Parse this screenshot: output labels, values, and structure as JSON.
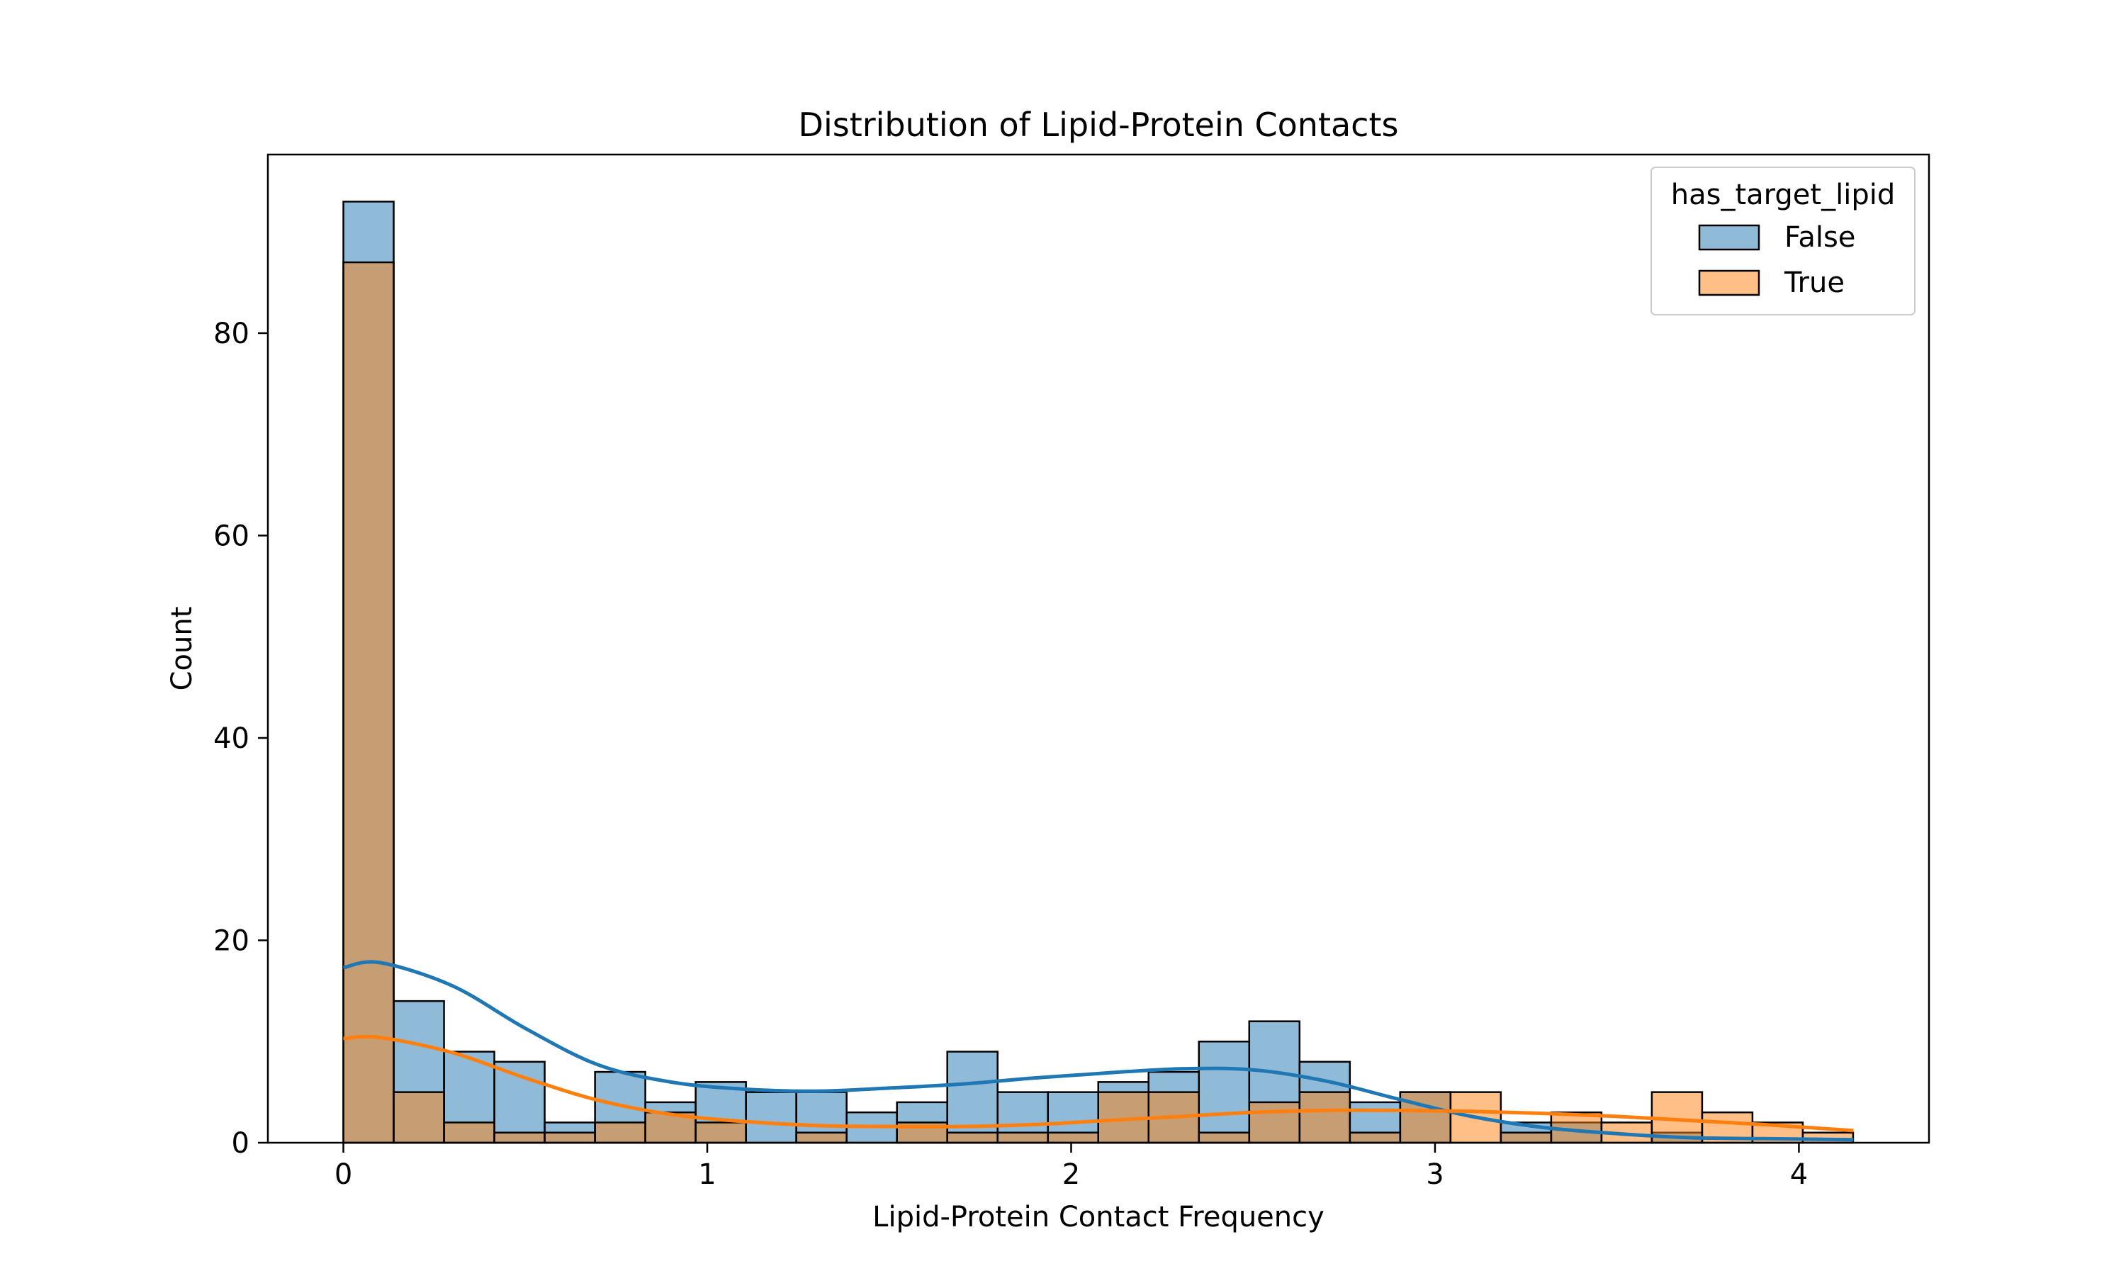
{
  "chart_data": {
    "type": "histogram",
    "title": "Distribution of Lipid-Protein Contacts",
    "xlabel": "Lipid-Protein Contact Frequency",
    "ylabel": "Count",
    "xlim": [
      -0.2075,
      4.3575
    ],
    "ylim": [
      0,
      97.65
    ],
    "xticks": [
      0,
      1,
      2,
      3,
      4
    ],
    "yticks": [
      0,
      20,
      40,
      60,
      80
    ],
    "bin_start": 0,
    "bin_width": 0.1383,
    "grid": false,
    "legend": {
      "title": "has_target_lipid",
      "position": "top-right",
      "entries": [
        "False",
        "True"
      ]
    },
    "series": [
      {
        "name": "False",
        "color": "#1f77b4",
        "values": [
          93,
          14,
          9,
          8,
          2,
          7,
          4,
          6,
          5,
          5,
          3,
          4,
          9,
          5,
          5,
          6,
          7,
          10,
          12,
          8,
          4,
          5,
          0,
          2,
          2,
          0,
          1,
          0,
          0,
          0
        ],
        "kde_x": [
          0,
          0.1,
          0.3,
          0.5,
          0.7,
          0.9,
          1.1,
          1.3,
          1.5,
          1.7,
          1.9,
          2.1,
          2.3,
          2.5,
          2.7,
          2.9,
          3.1,
          3.3,
          3.5,
          3.7,
          3.9,
          4.15
        ],
        "kde_y": [
          17.3,
          17.8,
          15.5,
          11.3,
          7.7,
          6.0,
          5.3,
          5.1,
          5.4,
          5.8,
          6.4,
          6.9,
          7.3,
          7.2,
          6.1,
          4.3,
          2.6,
          1.5,
          0.9,
          0.5,
          0.4,
          0.3
        ]
      },
      {
        "name": "True",
        "color": "#ff7f0e",
        "values": [
          87,
          5,
          2,
          1,
          1,
          2,
          3,
          2,
          0,
          1,
          0,
          2,
          1,
          1,
          1,
          5,
          5,
          1,
          4,
          5,
          1,
          5,
          5,
          1,
          3,
          2,
          5,
          3,
          2,
          1
        ],
        "kde_x": [
          0,
          0.1,
          0.3,
          0.5,
          0.7,
          0.9,
          1.1,
          1.3,
          1.5,
          1.7,
          1.9,
          2.1,
          2.3,
          2.5,
          2.7,
          2.9,
          3.1,
          3.3,
          3.5,
          3.7,
          3.9,
          4.15
        ],
        "kde_y": [
          10.3,
          10.4,
          8.9,
          6.4,
          4.2,
          2.8,
          2.1,
          1.7,
          1.6,
          1.6,
          1.8,
          2.2,
          2.6,
          3.0,
          3.2,
          3.2,
          3.1,
          2.9,
          2.6,
          2.2,
          1.8,
          1.2
        ]
      }
    ]
  }
}
